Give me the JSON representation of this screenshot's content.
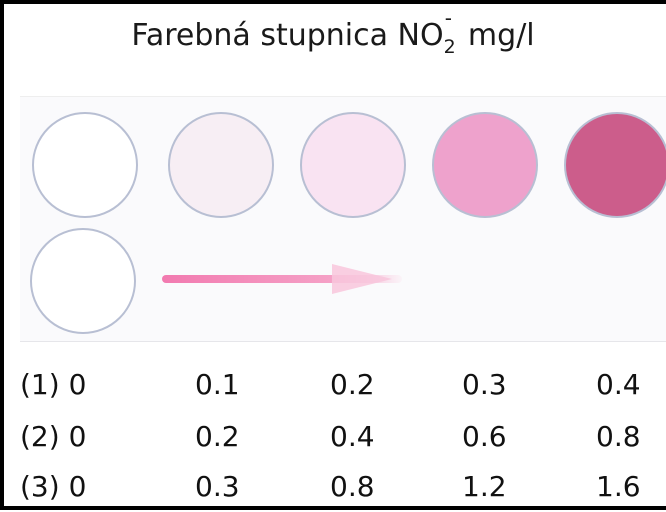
{
  "title": {
    "main": "Farebná stupnica NO",
    "subscript": "2",
    "superscript": "-",
    "unit": "mg/l"
  },
  "swatches": {
    "colors": [
      "#ffffff",
      "#f7eef4",
      "#f9e3f2",
      "#eea2cc",
      "#cc5d8b"
    ],
    "reference_color": "#ffffff",
    "arrow_color": "#f27ab0"
  },
  "scales": [
    {
      "label": "(1) 0",
      "values": [
        "0.1",
        "0.2",
        "0.3",
        "0.4"
      ]
    },
    {
      "label": "(2) 0",
      "values": [
        "0.2",
        "0.4",
        "0.6",
        "0.8"
      ]
    },
    {
      "label": "(3) 0",
      "values": [
        "0.3",
        "0.8",
        "1.2",
        "1.6"
      ]
    }
  ]
}
